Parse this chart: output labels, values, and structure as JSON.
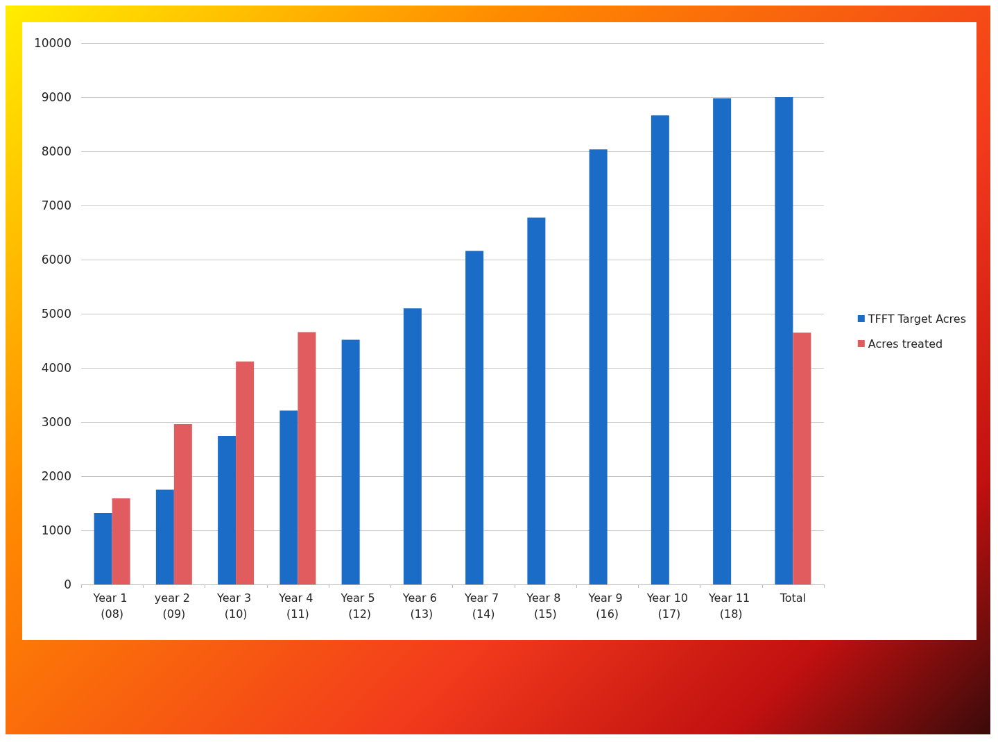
{
  "chart_data": {
    "type": "bar",
    "categories": [
      "Year 1 (08)",
      "year 2 (09)",
      "Year 3 (10)",
      "Year 4 (11)",
      "Year 5 (12)",
      "Year 6 (13)",
      "Year 7 (14)",
      "Year 8 (15)",
      "Year 9 (16)",
      "Year 10 (17)",
      "Year 11 (18)",
      "Total"
    ],
    "series": [
      {
        "name": "TFFT Target Acres",
        "color": "#1a6cc6",
        "values": [
          1320,
          1750,
          2745,
          3210,
          4520,
          5100,
          6160,
          6775,
          8035,
          8665,
          8980,
          9000
        ]
      },
      {
        "name": "Acres treated",
        "color": "#e05c5e",
        "values": [
          1590,
          2960,
          4120,
          4660,
          null,
          null,
          null,
          null,
          null,
          null,
          null,
          4650
        ]
      }
    ],
    "ylim": [
      0,
      10000
    ],
    "yticks": [
      0,
      1000,
      2000,
      3000,
      4000,
      5000,
      6000,
      7000,
      8000,
      9000,
      10000
    ],
    "grid": "y",
    "legend": "right"
  }
}
